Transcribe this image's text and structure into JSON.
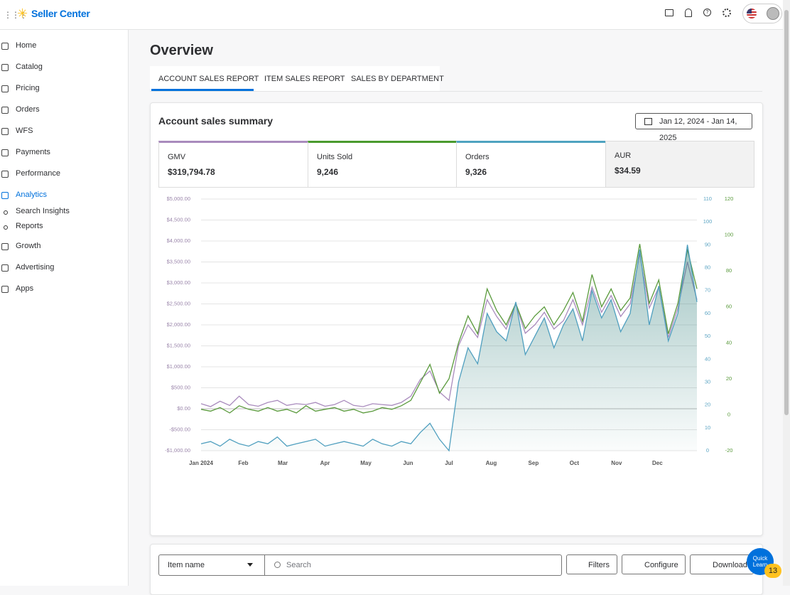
{
  "header": {
    "logo": "Seller Center"
  },
  "sidebar": {
    "items": [
      "Home",
      "Catalog",
      "Pricing",
      "Orders",
      "WFS",
      "Payments",
      "Performance",
      "Analytics",
      "Search Insights",
      "Reports",
      "Growth",
      "Advertising",
      "Apps"
    ]
  },
  "page": {
    "title": "Overview",
    "tabs": [
      "ACCOUNT SALES REPORT",
      "ITEM SALES REPORT",
      "SALES BY DEPARTMENT"
    ]
  },
  "card": {
    "title": "Account sales summary",
    "date_range": "Jan 12, 2024 - Jan 14, 2025"
  },
  "metrics": [
    {
      "label": "GMV",
      "value": "$319,794.78"
    },
    {
      "label": "Units Sold",
      "value": "9,246"
    },
    {
      "label": "Orders",
      "value": "9,326"
    },
    {
      "label": "AUR",
      "value": "$34.59"
    }
  ],
  "chart_data": {
    "type": "line",
    "x": [
      0,
      7,
      14,
      21,
      28,
      35,
      42,
      49,
      56,
      63,
      70,
      77,
      84,
      91,
      98,
      105,
      112,
      119,
      126,
      133,
      140,
      147,
      154,
      161,
      168,
      175,
      182,
      189,
      196,
      203,
      210,
      217,
      224,
      231,
      238,
      245,
      252,
      259,
      266,
      273,
      280,
      287,
      294,
      301,
      308,
      315,
      322,
      329,
      336,
      343,
      350,
      357,
      364
    ],
    "xlim": [
      0,
      364
    ],
    "xticks": [
      {
        "value": 0,
        "label": "Jan 2024"
      },
      {
        "value": 31,
        "label": "Feb"
      },
      {
        "value": 60,
        "label": "Mar"
      },
      {
        "value": 91,
        "label": "Apr"
      },
      {
        "value": 121,
        "label": "May"
      },
      {
        "value": 152,
        "label": "Jun"
      },
      {
        "value": 182,
        "label": "Jul"
      },
      {
        "value": 213,
        "label": "Aug"
      },
      {
        "value": 244,
        "label": "Sep"
      },
      {
        "value": 274,
        "label": "Oct"
      },
      {
        "value": 305,
        "label": "Nov"
      },
      {
        "value": 335,
        "label": "Dec"
      }
    ],
    "ylim": [
      -1000,
      5000
    ],
    "yticks": [
      {
        "value": -1000,
        "label": "-$1,000.00"
      },
      {
        "value": -500,
        "label": "-$500.00"
      },
      {
        "value": 0,
        "label": "$0.00"
      },
      {
        "value": 500,
        "label": "$500.00"
      },
      {
        "value": 1000,
        "label": "$1,000.00"
      },
      {
        "value": 1500,
        "label": "$1,500.00"
      },
      {
        "value": 2000,
        "label": "$2,000.00"
      },
      {
        "value": 2500,
        "label": "$2,500.00"
      },
      {
        "value": 3000,
        "label": "$3,000.00"
      },
      {
        "value": 3500,
        "label": "$3,500.00"
      },
      {
        "value": 4000,
        "label": "$4,000.00"
      },
      {
        "value": 4500,
        "label": "$4,500.00"
      },
      {
        "value": 5000,
        "label": "$5,000.00"
      }
    ],
    "y2lim": [
      0,
      110
    ],
    "y2ticks": [
      0,
      10,
      20,
      30,
      40,
      50,
      60,
      70,
      80,
      90,
      100,
      110
    ],
    "y3lim": [
      -20,
      120
    ],
    "y3ticks": [
      -20,
      0,
      20,
      40,
      60,
      80,
      100,
      120
    ],
    "grid": true,
    "series": [
      {
        "name": "GMV",
        "color": "#a98bbd",
        "axis": "y",
        "values": [
          120,
          50,
          180,
          80,
          300,
          100,
          60,
          150,
          200,
          80,
          120,
          100,
          150,
          60,
          100,
          200,
          80,
          50,
          120,
          100,
          80,
          150,
          300,
          700,
          900,
          400,
          200,
          1500,
          2000,
          1700,
          2600,
          2200,
          1900,
          2500,
          1800,
          2000,
          2300,
          1900,
          2100,
          2600,
          2000,
          2900,
          2300,
          2700,
          2200,
          2500,
          3700,
          2400,
          2900,
          1700,
          2400,
          3500,
          2600
        ]
      },
      {
        "name": "Units Sold",
        "color": "#5a9a3c",
        "axis": "y3",
        "values": [
          3,
          2,
          4,
          1,
          5,
          3,
          2,
          4,
          2,
          3,
          1,
          5,
          2,
          3,
          4,
          2,
          3,
          1,
          2,
          4,
          3,
          5,
          8,
          18,
          28,
          12,
          20,
          40,
          55,
          45,
          70,
          58,
          50,
          62,
          48,
          55,
          60,
          50,
          58,
          68,
          52,
          78,
          60,
          70,
          58,
          65,
          95,
          62,
          75,
          45,
          62,
          92,
          70
        ]
      },
      {
        "name": "Orders",
        "color": "#4f9fbf",
        "axis": "y2",
        "values": [
          3,
          4,
          2,
          5,
          3,
          2,
          4,
          3,
          6,
          2,
          3,
          4,
          5,
          2,
          3,
          4,
          3,
          2,
          5,
          3,
          2,
          4,
          3,
          8,
          12,
          5,
          0,
          30,
          45,
          38,
          60,
          52,
          48,
          65,
          42,
          50,
          58,
          45,
          55,
          62,
          48,
          70,
          58,
          66,
          52,
          60,
          88,
          55,
          72,
          48,
          60,
          90,
          65
        ]
      }
    ]
  },
  "toolbar": {
    "dropdown": "Item name",
    "search": "Search",
    "buttons": [
      "Filters",
      "Configure",
      "Download"
    ]
  },
  "help": {
    "label": "Quick Learn",
    "count": "13"
  }
}
